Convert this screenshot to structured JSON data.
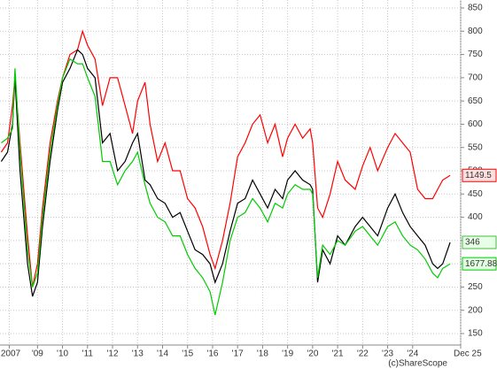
{
  "chart_data": {
    "type": "line",
    "x": [
      2007.55,
      2007.8,
      2008.0,
      2008.1,
      2008.3,
      2008.6,
      2008.8,
      2009.0,
      2009.2,
      2009.5,
      2009.8,
      2010.0,
      2010.3,
      2010.6,
      2010.8,
      2011.0,
      2011.3,
      2011.6,
      2011.9,
      2012.2,
      2012.5,
      2012.8,
      2013.0,
      2013.3,
      2013.5,
      2013.8,
      2014.1,
      2014.4,
      2014.7,
      2015.0,
      2015.3,
      2015.6,
      2015.9,
      2016.1,
      2016.4,
      2016.7,
      2017.0,
      2017.3,
      2017.6,
      2017.9,
      2018.2,
      2018.5,
      2018.8,
      2019.0,
      2019.3,
      2019.6,
      2019.9,
      2020.0,
      2020.2,
      2020.4,
      2020.7,
      2021.0,
      2021.3,
      2021.7,
      2022.0,
      2022.3,
      2022.6,
      2023.0,
      2023.3,
      2023.6,
      2023.9,
      2024.2,
      2024.5,
      2024.8,
      2025.0,
      2025.2,
      2025.5
    ],
    "series": [
      {
        "color": "#ff0000",
        "end_label": "1149.5",
        "values": [
          540,
          560,
          640,
          700,
          560,
          360,
          250,
          300,
          420,
          560,
          650,
          700,
          750,
          760,
          800,
          770,
          740,
          640,
          700,
          700,
          640,
          580,
          650,
          690,
          600,
          520,
          560,
          500,
          500,
          440,
          420,
          380,
          320,
          290,
          350,
          430,
          530,
          560,
          600,
          620,
          560,
          600,
          530,
          570,
          600,
          570,
          590,
          560,
          420,
          400,
          450,
          520,
          480,
          460,
          510,
          550,
          500,
          550,
          580,
          560,
          540,
          460,
          440,
          440,
          460,
          480,
          490
        ]
      },
      {
        "color": "#000000",
        "end_label": "346",
        "values": [
          520,
          540,
          600,
          700,
          500,
          300,
          230,
          260,
          380,
          520,
          630,
          690,
          720,
          760,
          750,
          720,
          700,
          560,
          580,
          500,
          520,
          560,
          580,
          480,
          470,
          440,
          430,
          400,
          410,
          370,
          330,
          320,
          300,
          260,
          300,
          370,
          430,
          440,
          480,
          450,
          420,
          460,
          440,
          480,
          500,
          480,
          470,
          460,
          260,
          330,
          300,
          360,
          340,
          380,
          400,
          380,
          360,
          420,
          450,
          410,
          380,
          360,
          340,
          300,
          290,
          300,
          346
        ]
      },
      {
        "color": "#00cc00",
        "end_label": "1677.88",
        "values": [
          560,
          570,
          590,
          720,
          540,
          330,
          250,
          280,
          400,
          540,
          640,
          700,
          740,
          730,
          730,
          700,
          660,
          520,
          520,
          470,
          500,
          520,
          540,
          470,
          430,
          400,
          390,
          360,
          360,
          320,
          290,
          270,
          240,
          190,
          260,
          350,
          400,
          410,
          440,
          420,
          390,
          430,
          420,
          450,
          470,
          460,
          460,
          450,
          270,
          340,
          320,
          350,
          340,
          370,
          380,
          360,
          340,
          380,
          390,
          360,
          340,
          330,
          310,
          280,
          270,
          290,
          300
        ]
      }
    ],
    "xlim": [
      2007.5,
      2025.92
    ],
    "xticks": [
      {
        "value": 2007.87,
        "label": "2007"
      },
      {
        "value": 2009,
        "label": "'09"
      },
      {
        "value": 2010,
        "label": "'10"
      },
      {
        "value": 2011,
        "label": "'11"
      },
      {
        "value": 2012,
        "label": "'12"
      },
      {
        "value": 2013,
        "label": "'13"
      },
      {
        "value": 2014,
        "label": "'14"
      },
      {
        "value": 2015,
        "label": "'15"
      },
      {
        "value": 2016,
        "label": "'16"
      },
      {
        "value": 2017,
        "label": "'17"
      },
      {
        "value": 2018,
        "label": "'18"
      },
      {
        "value": 2019,
        "label": "'19"
      },
      {
        "value": 2020,
        "label": "'20"
      },
      {
        "value": 2021,
        "label": "'21"
      },
      {
        "value": 2022,
        "label": "'22"
      },
      {
        "value": 2023,
        "label": "'23"
      },
      {
        "value": 2024,
        "label": "'24"
      },
      {
        "value": 2025.92,
        "label": "Dec 25"
      }
    ],
    "ylim": [
      125.3,
      867.1
    ],
    "yticks": [
      150,
      200,
      250,
      300,
      350,
      400,
      450,
      500,
      550,
      600,
      650,
      700,
      750,
      800,
      850
    ],
    "grid": true,
    "credit": "(c)ShareScope"
  }
}
